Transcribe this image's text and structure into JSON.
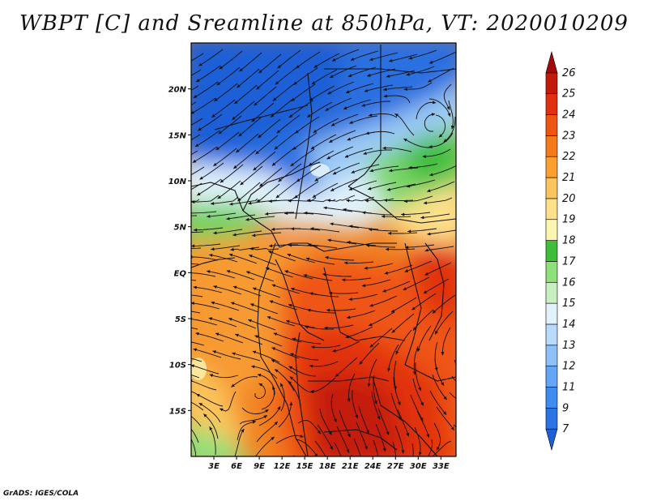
{
  "title": "WBPT [C] and Sreamline at 850hPa, VT: 2020010209",
  "credit": "GrADS: IGES/COLA",
  "map": {
    "lon_range": [
      0,
      35
    ],
    "lat_range": [
      -20,
      25
    ],
    "x_ticks": [
      "3E",
      "6E",
      "9E",
      "12E",
      "15E",
      "18E",
      "21E",
      "24E",
      "27E",
      "30E",
      "33E"
    ],
    "x_tick_values": [
      3,
      6,
      9,
      12,
      15,
      18,
      21,
      24,
      27,
      30,
      33
    ],
    "y_ticks": [
      "20N",
      "15N",
      "10N",
      "5N",
      "EQ",
      "5S",
      "10S",
      "15S"
    ],
    "y_tick_values": [
      20,
      15,
      10,
      5,
      0,
      -5,
      -10,
      -15
    ]
  },
  "colorbar": {
    "labels": [
      "7",
      "9",
      "11",
      "12",
      "13",
      "14",
      "15",
      "16",
      "17",
      "18",
      "19",
      "20",
      "21",
      "22",
      "23",
      "24",
      "25",
      "26"
    ],
    "colors": [
      "#1f5fd6",
      "#2a74e6",
      "#3f8cf0",
      "#62a6f4",
      "#8cc0f7",
      "#b8dafb",
      "#e1f2fc",
      "#c8efc0",
      "#8ee07a",
      "#3fbe3a",
      "#fdf5b0",
      "#fde08a",
      "#fcc45c",
      "#f9a030",
      "#f57a1a",
      "#ef5512",
      "#e13010",
      "#c41a0c",
      "#a30a0a"
    ]
  }
}
